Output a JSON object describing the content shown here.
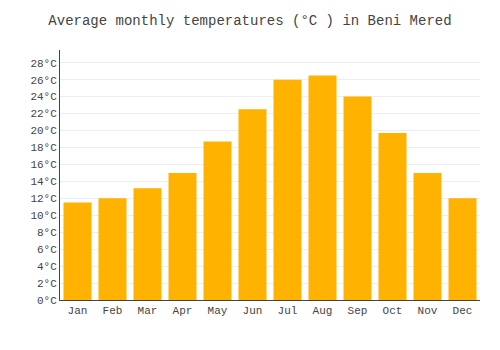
{
  "chart_data": {
    "type": "bar",
    "title": "Average monthly temperatures (°C ) in Beni Mered",
    "categories": [
      "Jan",
      "Feb",
      "Mar",
      "Apr",
      "May",
      "Jun",
      "Jul",
      "Aug",
      "Sep",
      "Oct",
      "Nov",
      "Dec"
    ],
    "values": [
      11.5,
      12.0,
      13.2,
      15.0,
      18.7,
      22.5,
      26.0,
      26.5,
      24.0,
      19.7,
      15.0,
      12.0
    ],
    "color": "#FFB200",
    "ylim": [
      0,
      29.5
    ],
    "yticks": [
      {
        "value": 0,
        "label": "0°C"
      },
      {
        "value": 2,
        "label": "2°C"
      },
      {
        "value": 4,
        "label": "4°C"
      },
      {
        "value": 6,
        "label": "6°C"
      },
      {
        "value": 8,
        "label": "8°C"
      },
      {
        "value": 10,
        "label": "10°C"
      },
      {
        "value": 12,
        "label": "12°C"
      },
      {
        "value": 14,
        "label": "14°C"
      },
      {
        "value": 16,
        "label": "16°C"
      },
      {
        "value": 18,
        "label": "18°C"
      },
      {
        "value": 20,
        "label": "20°C"
      },
      {
        "value": 22,
        "label": "22°C"
      },
      {
        "value": 24,
        "label": "24°C"
      },
      {
        "value": 26,
        "label": "26°C"
      },
      {
        "value": 28,
        "label": "28°C"
      }
    ],
    "grid": true
  }
}
